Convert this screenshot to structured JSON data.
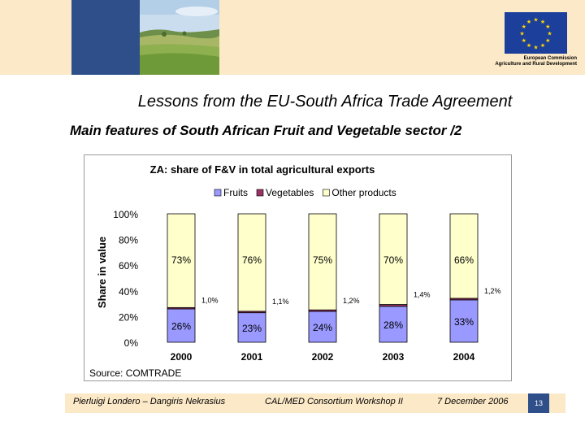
{
  "header": {
    "eu_caption_line1": "European Commission",
    "eu_caption_line2": "Agriculture and Rural Development"
  },
  "slide": {
    "title": "Lessons from the EU-South Africa Trade Agreement",
    "subtitle": "Main features of South African Fruit and Vegetable sector /2"
  },
  "chart_data": {
    "type": "bar",
    "stacked": true,
    "title": "ZA: share of F&V in total agricultural exports",
    "ylabel": "Share in value",
    "xlabel": "",
    "source": "Source: COMTRADE",
    "categories": [
      "2000",
      "2001",
      "2002",
      "2003",
      "2004"
    ],
    "ylim": [
      0,
      100
    ],
    "yticks": [
      "0%",
      "20%",
      "40%",
      "60%",
      "80%",
      "100%"
    ],
    "legend_position": "top",
    "series": [
      {
        "name": "Fruits",
        "color": "#9999FF",
        "values": [
          26,
          23,
          24,
          28,
          33
        ],
        "labels": [
          "26%",
          "23%",
          "24%",
          "28%",
          "33%"
        ]
      },
      {
        "name": "Vegetables",
        "color": "#993366",
        "values": [
          1.0,
          1.1,
          1.2,
          1.4,
          1.2
        ],
        "labels": [
          "1,0%",
          "1,1%",
          "1,2%",
          "1,4%",
          "1,2%"
        ]
      },
      {
        "name": "Other products",
        "color": "#FFFFCC",
        "values": [
          73,
          76,
          75,
          70,
          66
        ],
        "labels": [
          "73%",
          "76%",
          "75%",
          "70%",
          "66%"
        ]
      }
    ]
  },
  "footer": {
    "authors": "Pierluigi Londero – Dangiris Nekrasius",
    "event": "CAL/MED Consortium Workshop II",
    "date": "7 December 2006",
    "page": "13"
  }
}
